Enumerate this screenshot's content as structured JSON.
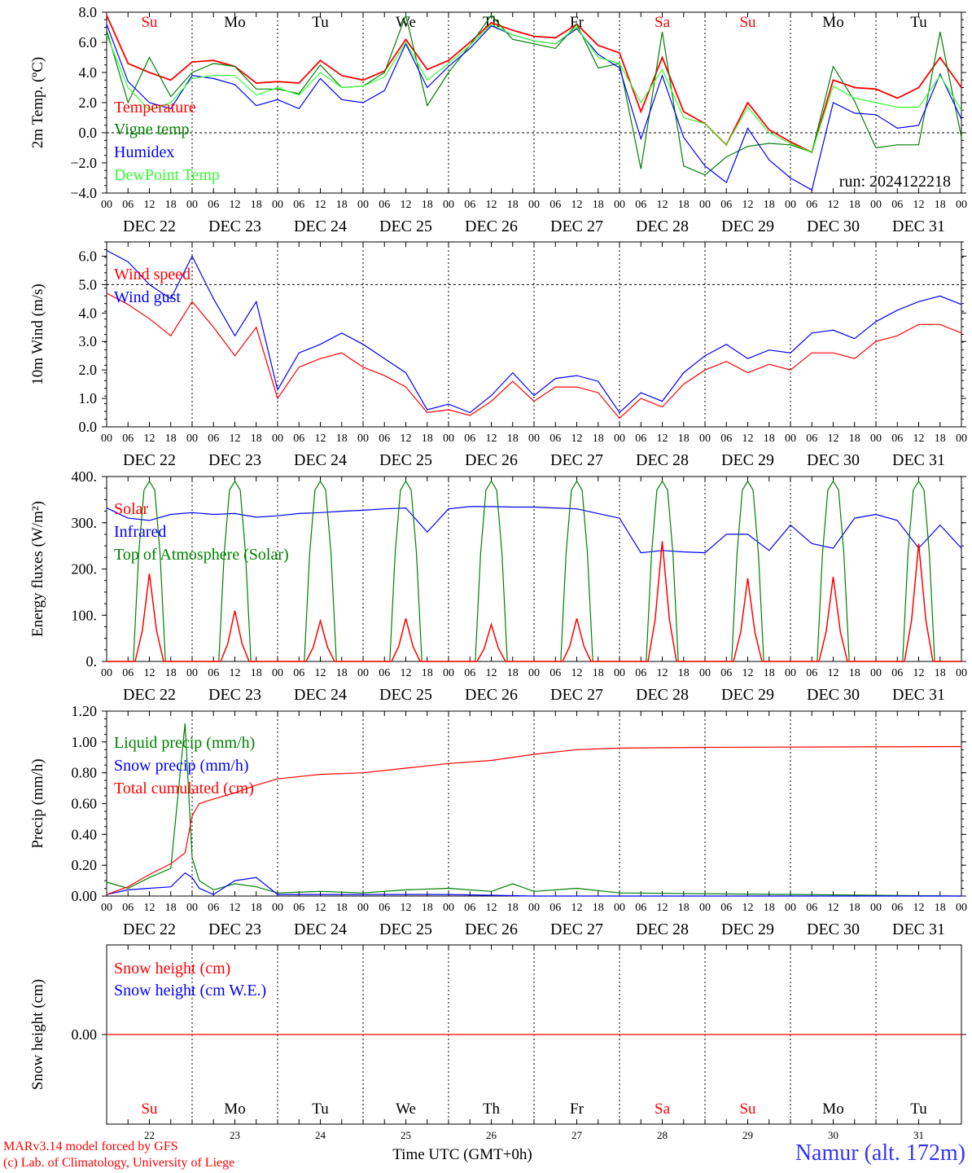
{
  "chart_data": [
    {
      "type": "line",
      "ylabel": "2m Temp. (ºC)",
      "ylim": [
        -4,
        8
      ],
      "yticks": [
        "8.0",
        "6.0",
        "4.0",
        "2.0",
        "0.0",
        "−2.0",
        "−4.0"
      ],
      "grid": "vertical dotted at day boundaries, dashed zero line",
      "legend": [
        "Temperature",
        "Vigne temp",
        "Humidex",
        "DewPoint Temp"
      ],
      "annotation": "run: 2024122218",
      "series": [
        {
          "name": "Temperature",
          "color": "#ff0000",
          "x": [
            0,
            6,
            12,
            18,
            24,
            30,
            36,
            42,
            48,
            54,
            60,
            66,
            72,
            78,
            84,
            90,
            96,
            102,
            108,
            114,
            120,
            126,
            132,
            138,
            144,
            150,
            156,
            162,
            168,
            174,
            180,
            186,
            192,
            198,
            204,
            210,
            216,
            222,
            228,
            234,
            240
          ],
          "values": [
            7.8,
            4.6,
            4.0,
            3.5,
            4.7,
            4.8,
            4.4,
            3.3,
            3.4,
            3.3,
            4.8,
            3.8,
            3.5,
            4.1,
            6.2,
            4.2,
            4.8,
            6.0,
            7.3,
            6.8,
            6.4,
            6.3,
            7.2,
            5.8,
            5.3,
            1.4,
            5.0,
            1.4,
            0.6,
            -0.8,
            2.0,
            0.2,
            -0.6,
            -1.3,
            3.5,
            3.0,
            2.9,
            2.3,
            3.0,
            5.0,
            3.0
          ]
        },
        {
          "name": "Vigne temp",
          "color": "#008000",
          "x": [
            0,
            6,
            12,
            18,
            24,
            30,
            36,
            42,
            48,
            54,
            60,
            66,
            72,
            78,
            84,
            90,
            96,
            102,
            108,
            114,
            120,
            126,
            132,
            138,
            144,
            150,
            156,
            162,
            168,
            174,
            180,
            186,
            192,
            198,
            204,
            210,
            216,
            222,
            228,
            234,
            240
          ],
          "values": [
            6.8,
            2.0,
            5.0,
            2.4,
            4.0,
            4.6,
            4.4,
            2.9,
            2.9,
            2.6,
            4.5,
            3.0,
            3.1,
            4.0,
            7.8,
            1.8,
            4.0,
            5.8,
            7.8,
            6.2,
            5.9,
            5.6,
            7.2,
            4.3,
            4.6,
            -2.4,
            6.7,
            -2.2,
            -2.8,
            -1.6,
            -0.9,
            -0.7,
            -0.8,
            -1.3,
            4.4,
            2.1,
            -1.0,
            -0.8,
            -0.8,
            6.7,
            -0.3
          ]
        },
        {
          "name": "Humidex",
          "color": "#0000ff",
          "x": [
            0,
            6,
            12,
            18,
            24,
            30,
            36,
            42,
            48,
            54,
            60,
            66,
            72,
            78,
            84,
            90,
            96,
            102,
            108,
            114,
            120,
            126,
            132,
            138,
            144,
            150,
            156,
            162,
            168,
            174,
            180,
            186,
            192,
            198,
            204,
            210,
            216,
            222,
            228,
            234,
            240
          ],
          "values": [
            7.2,
            3.4,
            2.0,
            1.6,
            3.8,
            3.6,
            3.2,
            1.8,
            2.2,
            1.6,
            3.6,
            2.2,
            2.0,
            2.8,
            5.9,
            3.0,
            4.4,
            5.6,
            7.1,
            6.5,
            6.1,
            5.9,
            6.9,
            5.2,
            4.3,
            -0.4,
            3.8,
            -0.3,
            -2.2,
            -3.3,
            0.3,
            -1.8,
            -3.0,
            -3.8,
            2.0,
            1.3,
            1.2,
            0.3,
            0.5,
            3.9,
            0.9
          ]
        },
        {
          "name": "DewPoint Temp",
          "color": "#33ff33",
          "x": [
            0,
            6,
            12,
            18,
            24,
            30,
            36,
            42,
            48,
            54,
            60,
            66,
            72,
            78,
            84,
            90,
            96,
            102,
            108,
            114,
            120,
            126,
            132,
            138,
            144,
            150,
            156,
            162,
            168,
            174,
            180,
            186,
            192,
            198,
            204,
            210,
            216,
            222,
            228,
            234,
            240
          ],
          "values": [
            6.5,
            3.0,
            1.5,
            2.0,
            3.6,
            3.8,
            3.8,
            2.5,
            3.0,
            2.5,
            4.0,
            3.0,
            3.1,
            3.7,
            6.0,
            3.5,
            4.6,
            5.8,
            7.2,
            6.5,
            6.1,
            5.9,
            7.0,
            5.0,
            4.6,
            2.0,
            4.2,
            1.0,
            0.6,
            -0.8,
            1.7,
            0.0,
            -0.7,
            -1.3,
            3.1,
            2.3,
            2.0,
            1.7,
            1.7,
            3.8,
            1.5
          ]
        }
      ]
    },
    {
      "type": "line",
      "ylabel": "10m Wind (m/s)",
      "ylim": [
        0,
        6.5
      ],
      "yticks": [
        "6.0",
        "5.0",
        "4.0",
        "3.0",
        "2.0",
        "1.0",
        "0.0"
      ],
      "grid": "vertical dotted at day boundaries, dashed line at 5.0",
      "legend": [
        "Wind speed",
        "Wind gust"
      ],
      "series": [
        {
          "name": "Wind speed",
          "color": "#ff0000",
          "x": [
            0,
            6,
            12,
            18,
            24,
            30,
            36,
            42,
            48,
            54,
            60,
            66,
            72,
            78,
            84,
            90,
            96,
            102,
            108,
            114,
            120,
            126,
            132,
            138,
            144,
            150,
            156,
            162,
            168,
            174,
            180,
            186,
            192,
            198,
            204,
            210,
            216,
            222,
            228,
            234,
            240
          ],
          "values": [
            4.7,
            4.3,
            3.8,
            3.2,
            4.4,
            3.5,
            2.5,
            3.5,
            1.0,
            2.1,
            2.4,
            2.6,
            2.1,
            1.8,
            1.4,
            0.5,
            0.6,
            0.4,
            0.9,
            1.6,
            0.9,
            1.4,
            1.4,
            1.2,
            0.3,
            1.0,
            0.7,
            1.5,
            2.0,
            2.3,
            1.9,
            2.2,
            2.0,
            2.6,
            2.6,
            2.4,
            3.0,
            3.2,
            3.6,
            3.6,
            3.3
          ]
        },
        {
          "name": "Wind gust",
          "color": "#0000ff",
          "x": [
            0,
            6,
            12,
            18,
            24,
            30,
            36,
            42,
            48,
            54,
            60,
            66,
            72,
            78,
            84,
            90,
            96,
            102,
            108,
            114,
            120,
            126,
            132,
            138,
            144,
            150,
            156,
            162,
            168,
            174,
            180,
            186,
            192,
            198,
            204,
            210,
            216,
            222,
            228,
            234,
            240
          ],
          "values": [
            6.2,
            5.8,
            5.0,
            4.5,
            6.0,
            4.5,
            3.2,
            4.4,
            1.3,
            2.6,
            2.9,
            3.3,
            2.9,
            2.4,
            1.9,
            0.6,
            0.8,
            0.5,
            1.1,
            1.9,
            1.1,
            1.7,
            1.8,
            1.6,
            0.5,
            1.2,
            0.9,
            1.9,
            2.5,
            2.9,
            2.4,
            2.7,
            2.6,
            3.3,
            3.4,
            3.1,
            3.7,
            4.1,
            4.4,
            4.6,
            4.3
          ]
        }
      ]
    },
    {
      "type": "line",
      "ylabel": "Energy fluxes (W/m²)",
      "ylim": [
        0,
        400
      ],
      "yticks": [
        "400.",
        "300.",
        "200.",
        "100.",
        "0."
      ],
      "grid": "vertical dotted at day boundaries",
      "legend": [
        "Solar",
        "Infrared",
        "Top of Atmosphere (Solar)"
      ],
      "daily_peak_solar": [
        190,
        110,
        88,
        93,
        80,
        93,
        260,
        180,
        183,
        255
      ],
      "toa_daily_peak": 390,
      "series": [
        {
          "name": "Infrared",
          "color": "#0000ff",
          "x": [
            0,
            6,
            12,
            18,
            24,
            30,
            36,
            42,
            48,
            54,
            60,
            66,
            72,
            78,
            84,
            90,
            96,
            102,
            108,
            114,
            120,
            126,
            132,
            138,
            144,
            150,
            156,
            162,
            168,
            174,
            180,
            186,
            192,
            198,
            204,
            210,
            216,
            222,
            228,
            234,
            240
          ],
          "values": [
            332,
            310,
            305,
            318,
            322,
            318,
            320,
            312,
            315,
            320,
            322,
            325,
            327,
            330,
            332,
            280,
            330,
            335,
            335,
            334,
            334,
            332,
            330,
            320,
            310,
            235,
            240,
            237,
            235,
            275,
            275,
            240,
            295,
            255,
            245,
            310,
            318,
            305,
            245,
            295,
            245
          ]
        }
      ]
    },
    {
      "type": "line",
      "ylabel": "Precip (mm/h)",
      "ylim": [
        0,
        1.2
      ],
      "yticks": [
        "1.20",
        "1.00",
        "0.80",
        "0.60",
        "0.40",
        "0.20",
        "0.00"
      ],
      "grid": "vertical dotted at day boundaries",
      "legend": [
        "Liquid precip (mm/h)",
        "Snow precip (mm/h)",
        "Total cumulated (cm)"
      ],
      "series": [
        {
          "name": "Liquid precip (mm/h)",
          "color": "#008000",
          "x": [
            0,
            6,
            12,
            18,
            22,
            24,
            26,
            30,
            36,
            42,
            48,
            60,
            72,
            84,
            96,
            108,
            114,
            120,
            132,
            144,
            240
          ],
          "values": [
            0.09,
            0.05,
            0.12,
            0.18,
            1.12,
            0.25,
            0.1,
            0.04,
            0.08,
            0.06,
            0.02,
            0.03,
            0.02,
            0.04,
            0.05,
            0.03,
            0.08,
            0.03,
            0.05,
            0.02,
            0.0
          ]
        },
        {
          "name": "Snow precip (mm/h)",
          "color": "#0000ff",
          "x": [
            0,
            6,
            12,
            18,
            22,
            24,
            26,
            30,
            36,
            42,
            48,
            60,
            72,
            84,
            96,
            120,
            240
          ],
          "values": [
            0.01,
            0.04,
            0.05,
            0.06,
            0.15,
            0.12,
            0.05,
            0.01,
            0.1,
            0.12,
            0.01,
            0.01,
            0.01,
            0.01,
            0.01,
            0.0,
            0.0
          ]
        },
        {
          "name": "Total cumulated (cm)",
          "color": "#ff0000",
          "x": [
            0,
            6,
            12,
            18,
            22,
            24,
            26,
            30,
            36,
            42,
            48,
            60,
            72,
            84,
            96,
            108,
            120,
            132,
            144,
            168,
            240
          ],
          "values": [
            0.01,
            0.06,
            0.14,
            0.21,
            0.28,
            0.52,
            0.6,
            0.63,
            0.67,
            0.72,
            0.76,
            0.79,
            0.8,
            0.83,
            0.86,
            0.88,
            0.92,
            0.95,
            0.96,
            0.965,
            0.97
          ]
        }
      ]
    },
    {
      "type": "line",
      "ylabel": "Snow height (cm)",
      "yticks": [
        "0.00"
      ],
      "legend": [
        "Snow height (cm)",
        "Snow height (cm W.E.)"
      ],
      "series": [
        {
          "name": "Snow height (cm)",
          "color": "#ff0000",
          "x": [
            0,
            240
          ],
          "values": [
            0,
            0
          ]
        }
      ]
    }
  ],
  "axis": {
    "hour_ticks": [
      "00",
      "06",
      "12",
      "18"
    ],
    "last_hour": "00",
    "dates": [
      "DEC 22",
      "DEC 23",
      "DEC 24",
      "DEC 25",
      "DEC 26",
      "DEC 27",
      "DEC 28",
      "DEC 29",
      "DEC 30",
      "DEC 31"
    ],
    "weekdays": [
      "Su",
      "Mo",
      "Tu",
      "We",
      "Th",
      "Fr",
      "Sa",
      "Su",
      "Mo",
      "Tu"
    ],
    "weekend_flags": [
      true,
      false,
      false,
      false,
      false,
      false,
      true,
      true,
      false,
      false
    ],
    "day_numbers": [
      "22",
      "23",
      "24",
      "25",
      "26",
      "27",
      "28",
      "29",
      "30",
      "31"
    ],
    "xlabel": "Time UTC (GMT+0h)"
  },
  "colors": {
    "weekend": "#ff0000",
    "weekday": "#000000",
    "station": "#3333ff"
  },
  "footer": {
    "credit1": "MARv3.14 model forced by GFS",
    "credit2": "(c) Lab. of Climatology, University of Liege",
    "station": "Namur (alt. 172m)"
  }
}
